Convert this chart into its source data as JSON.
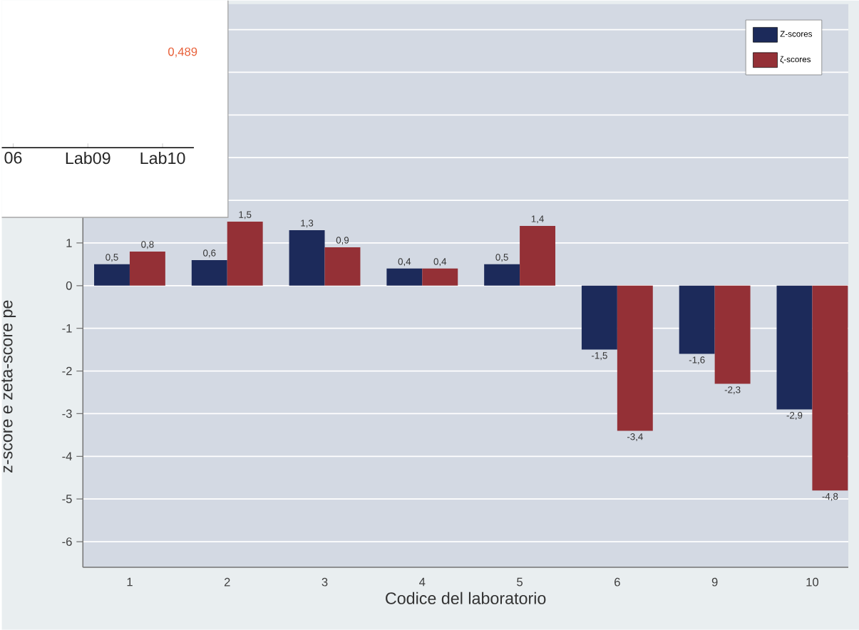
{
  "chart_data": [
    {
      "type": "bar",
      "xlabel": "Codice del laboratorio",
      "ylabel": "z-score e zeta-score pe",
      "categories": [
        "1",
        "2",
        "3",
        "4",
        "5",
        "6",
        "9",
        "10"
      ],
      "series": [
        {
          "name": "Z-scores",
          "color": "#1c2a5a",
          "values": [
            0.5,
            0.6,
            1.3,
            0.4,
            0.5,
            -1.5,
            -1.6,
            -2.9
          ],
          "value_labels": [
            "0,5",
            "0,6",
            "1,3",
            "0,4",
            "0,5",
            "-1,5",
            "-1,6",
            "-2,9"
          ]
        },
        {
          "name": "ζ-scores",
          "color": "#943036",
          "values": [
            0.8,
            1.5,
            0.9,
            0.4,
            1.4,
            -3.4,
            -2.3,
            -4.8
          ],
          "value_labels": [
            "0,8",
            "1,5",
            "0,9",
            "0,4",
            "1,4",
            "-3,4",
            "-2,3",
            "-4,8"
          ]
        }
      ],
      "ylim": [
        -6.6,
        6.6
      ],
      "yticks": [
        -6,
        -5,
        -4,
        -3,
        -2,
        -1,
        0,
        1,
        {
          "value": 2,
          "label": null
        },
        {
          "value": 3,
          "label": null
        },
        {
          "value": 4,
          "label": null
        },
        {
          "value": 5,
          "label": null
        },
        {
          "value": 6,
          "label": null
        }
      ],
      "grid": "y",
      "legend": "top right"
    },
    {
      "type": "other",
      "categories": [
        "06",
        "Lab09",
        "Lab10"
      ],
      "annotations": [
        "0,489"
      ]
    }
  ]
}
